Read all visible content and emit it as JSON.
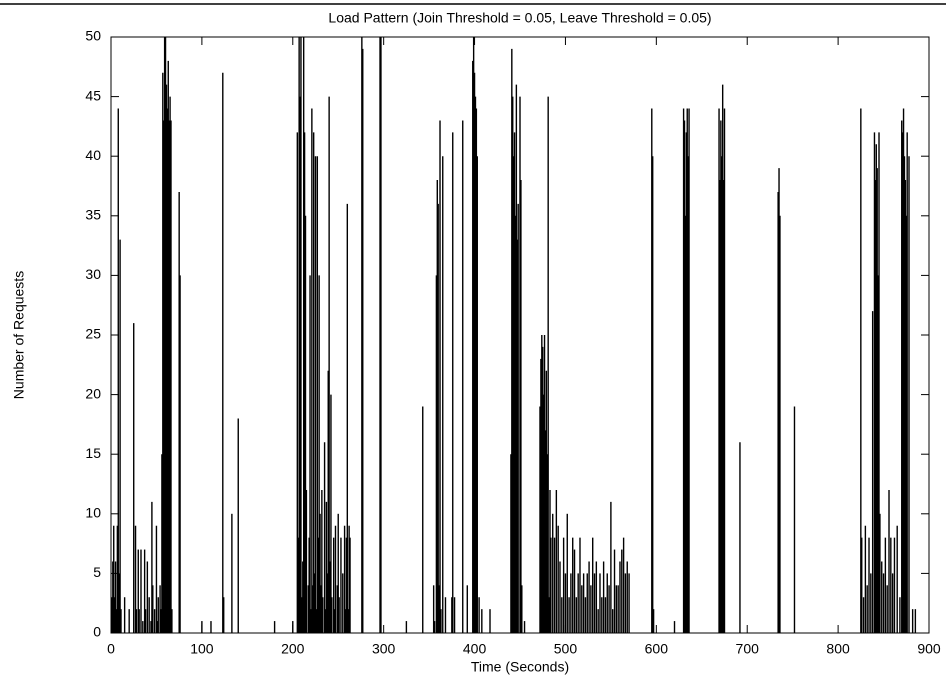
{
  "chart_data": {
    "type": "impulse",
    "title": "Load Pattern (Join Threshold = 0.05, Leave Threshold = 0.05)",
    "x_label": "Time (Seconds)",
    "y_label": "Number of Requests",
    "color": "#000000",
    "xlim": [
      0,
      900
    ],
    "xticks": [
      0,
      100,
      200,
      300,
      400,
      500,
      600,
      700,
      800,
      900
    ],
    "ylim": [
      0,
      50
    ],
    "yticks": [
      0,
      5,
      10,
      15,
      20,
      25,
      30,
      35,
      40,
      45,
      50
    ],
    "grid": false,
    "x": [
      1,
      2,
      3,
      4,
      5,
      6,
      7,
      8,
      9,
      10,
      11,
      15,
      20,
      25,
      27,
      28,
      30,
      31,
      33,
      35,
      37,
      38,
      40,
      42,
      44,
      45,
      46,
      48,
      50,
      51,
      52,
      54,
      55,
      56,
      57,
      58,
      59,
      60,
      61,
      62,
      63,
      64,
      65,
      66,
      67,
      75,
      76,
      100,
      110,
      123,
      124,
      133,
      140,
      180,
      200,
      205,
      206,
      207,
      208,
      209,
      210,
      211,
      212,
      213,
      214,
      215,
      217,
      218,
      219,
      220,
      221,
      222,
      223,
      224,
      225,
      226,
      227,
      228,
      229,
      230,
      231,
      232,
      233,
      235,
      236,
      237,
      238,
      239,
      240,
      241,
      242,
      243,
      245,
      246,
      247,
      249,
      250,
      251,
      253,
      255,
      257,
      258,
      259,
      260,
      261,
      262,
      263,
      276,
      277,
      296,
      297,
      325,
      343,
      355,
      356,
      358,
      359,
      360,
      361,
      362,
      363,
      365,
      368,
      375,
      376,
      378,
      387,
      392,
      398,
      399,
      400,
      401,
      402,
      403,
      405,
      408,
      417,
      440,
      441,
      442,
      443,
      444,
      445,
      446,
      447,
      448,
      450,
      451,
      452,
      455,
      472,
      473,
      474,
      475,
      476,
      477,
      478,
      479,
      480,
      481,
      482,
      483,
      484,
      486,
      488,
      490,
      492,
      494,
      496,
      498,
      500,
      502,
      504,
      506,
      508,
      510,
      512,
      514,
      516,
      518,
      520,
      522,
      524,
      526,
      528,
      530,
      532,
      534,
      536,
      538,
      540,
      542,
      544,
      546,
      548,
      550,
      552,
      554,
      556,
      558,
      560,
      562,
      564,
      566,
      568,
      570,
      595,
      596,
      597,
      620,
      630,
      631,
      632,
      633,
      634,
      635,
      636,
      669,
      670,
      671,
      672,
      673,
      674,
      675,
      692,
      734,
      735,
      736,
      752,
      825,
      826,
      828,
      830,
      832,
      834,
      836,
      838,
      840,
      841,
      842,
      843,
      844,
      845,
      846,
      848,
      850,
      852,
      854,
      856,
      858,
      860,
      862,
      865,
      868,
      870,
      871,
      872,
      873,
      874,
      875,
      876,
      878,
      882,
      885
    ],
    "values": [
      3,
      6,
      9,
      3,
      6,
      2,
      9,
      44,
      5,
      33,
      2,
      3,
      2,
      26,
      9,
      2,
      7,
      2,
      7,
      1,
      7,
      2,
      6,
      3,
      1,
      11,
      4,
      2,
      9,
      1,
      3,
      4,
      2,
      15,
      47,
      43,
      50,
      50,
      46,
      44,
      48,
      43,
      45,
      43,
      2,
      37,
      30,
      1,
      1,
      47,
      3,
      10,
      18,
      1,
      1,
      42,
      8,
      50,
      45,
      50,
      3,
      6,
      50,
      42,
      35,
      12,
      4,
      8,
      30,
      2,
      44,
      4,
      42,
      5,
      40,
      2,
      40,
      8,
      30,
      10,
      4,
      12,
      3,
      16,
      2,
      11,
      5,
      22,
      45,
      6,
      20,
      3,
      8,
      2,
      9,
      4,
      10,
      3,
      8,
      5,
      9,
      2,
      8,
      36,
      2,
      9,
      8,
      50,
      49,
      50,
      50,
      1,
      19,
      4,
      1,
      30,
      38,
      36,
      4,
      43,
      2,
      40,
      3,
      3,
      42,
      3,
      43,
      4,
      48,
      50,
      47,
      45,
      44,
      40,
      3,
      2,
      2,
      15,
      49,
      45,
      40,
      42,
      35,
      46,
      33,
      36,
      45,
      38,
      4,
      1,
      19,
      23,
      25,
      24,
      20,
      25,
      17,
      22,
      15,
      45,
      3,
      12,
      8,
      10,
      8,
      12,
      9,
      6,
      3,
      8,
      5,
      10,
      3,
      5,
      8,
      7,
      3,
      5,
      8,
      4,
      5,
      3,
      5,
      6,
      4,
      8,
      5,
      6,
      2,
      5,
      3,
      6,
      3,
      5,
      4,
      11,
      2,
      7,
      4,
      4,
      6,
      7,
      8,
      5,
      6,
      5,
      44,
      40,
      2,
      1,
      44,
      43,
      35,
      42,
      44,
      40,
      44,
      44,
      38,
      43,
      40,
      46,
      38,
      44,
      16,
      37,
      39,
      35,
      19,
      44,
      8,
      3,
      9,
      4,
      8,
      5,
      27,
      42,
      38,
      41,
      39,
      30,
      42,
      10,
      6,
      5,
      8,
      4,
      12,
      8,
      5,
      8,
      9,
      3,
      43,
      42,
      44,
      40,
      38,
      35,
      42,
      40,
      2,
      2
    ]
  }
}
